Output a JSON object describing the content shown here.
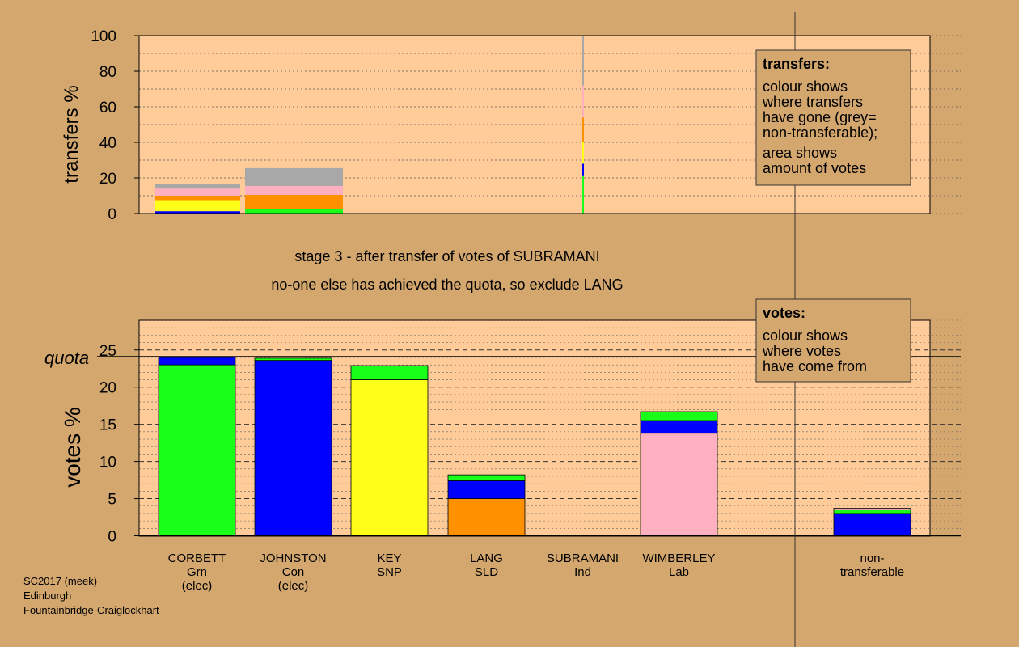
{
  "colors": {
    "background": "#d4a76f",
    "plot_bg": "#ffcc99",
    "Grn": "#1aff1a",
    "Con": "#0000ff",
    "SNP": "#ffff1a",
    "SLD": "#ff9000",
    "Ind": "#a0a0a0",
    "Lab": "#ffb0c0",
    "nontransferable": "#a8a8a8"
  },
  "texts": {
    "stage_line": "stage 3 - after transfer of votes of SUBRAMANI",
    "action_line": "no-one else has achieved the quota, so exclude LANG",
    "footer": [
      "SC2017 (meek)",
      "Edinburgh",
      "Fountainbridge-Craiglockhart"
    ]
  },
  "chart_data": [
    {
      "type": "bar",
      "name": "transfers",
      "ylabel": "transfers %",
      "ylim": [
        0,
        100
      ],
      "yticks": [
        0,
        20,
        40,
        60,
        80,
        100
      ],
      "legend": {
        "title": "transfers:",
        "lines": [
          "colour shows",
          "where transfers",
          "have gone (grey=",
          "non-transferable);",
          "",
          "area shows",
          "amount of votes"
        ]
      },
      "bars": [
        {
          "category": "CORBETT",
          "segments": [
            {
              "color": "Con",
              "value": 1.3
            },
            {
              "color": "SNP",
              "value": 6.2
            },
            {
              "color": "SLD",
              "value": 2.5
            },
            {
              "color": "Lab",
              "value": 4.0
            },
            {
              "color": "nontransferable",
              "value": 2.5
            }
          ]
        },
        {
          "category": "JOHNSTON",
          "segments": [
            {
              "color": "Grn",
              "value": 2.5
            },
            {
              "color": "SLD",
              "value": 8.0
            },
            {
              "color": "Lab",
              "value": 5.0
            },
            {
              "color": "nontransferable",
              "value": 10.0
            }
          ]
        },
        {
          "category": "SUBRAMANI",
          "segments": [
            {
              "color": "Grn",
              "value": 21
            },
            {
              "color": "Con",
              "value": 7
            },
            {
              "color": "SNP",
              "value": 12
            },
            {
              "color": "SLD",
              "value": 14
            },
            {
              "color": "Lab",
              "value": 18
            },
            {
              "color": "nontransferable",
              "value": 28
            }
          ]
        }
      ]
    },
    {
      "type": "bar",
      "name": "votes",
      "ylabel": "votes %",
      "ylim": [
        0,
        29
      ],
      "yticks": [
        0,
        5,
        10,
        15,
        20,
        25
      ],
      "quota": 24.1,
      "quota_label": "quota",
      "legend": {
        "title": "votes:",
        "lines": [
          "colour shows",
          "where votes",
          "have come from"
        ]
      },
      "bars": [
        {
          "category": "CORBETT",
          "labels": [
            "CORBETT",
            "Grn",
            "(elec)"
          ],
          "segments": [
            {
              "color": "Grn",
              "value": 23.0
            },
            {
              "color": "Con",
              "value": 1.0
            }
          ]
        },
        {
          "category": "JOHNSTON",
          "labels": [
            "JOHNSTON",
            "Con",
            "(elec)"
          ],
          "segments": [
            {
              "color": "Con",
              "value": 23.6
            },
            {
              "color": "Grn",
              "value": 0.3
            }
          ]
        },
        {
          "category": "KEY",
          "labels": [
            "KEY",
            "SNP"
          ],
          "segments": [
            {
              "color": "SNP",
              "value": 21.0
            },
            {
              "color": "Grn",
              "value": 1.9
            }
          ]
        },
        {
          "category": "LANG",
          "labels": [
            "LANG",
            "SLD"
          ],
          "segments": [
            {
              "color": "SLD",
              "value": 5.0
            },
            {
              "color": "Con",
              "value": 2.4
            },
            {
              "color": "Grn",
              "value": 0.8
            }
          ]
        },
        {
          "category": "SUBRAMANI",
          "labels": [
            "SUBRAMANI",
            "Ind"
          ],
          "segments": []
        },
        {
          "category": "WIMBERLEY",
          "labels": [
            "WIMBERLEY",
            "Lab"
          ],
          "segments": [
            {
              "color": "Lab",
              "value": 13.8
            },
            {
              "color": "Con",
              "value": 1.7
            },
            {
              "color": "Grn",
              "value": 1.2
            }
          ]
        },
        {
          "category": "non-transferable",
          "labels": [
            "non-",
            "transferable"
          ],
          "segments": [
            {
              "color": "Con",
              "value": 3.0
            },
            {
              "color": "Grn",
              "value": 0.5
            },
            {
              "color": "Lab",
              "value": 0.2
            }
          ]
        }
      ]
    }
  ]
}
